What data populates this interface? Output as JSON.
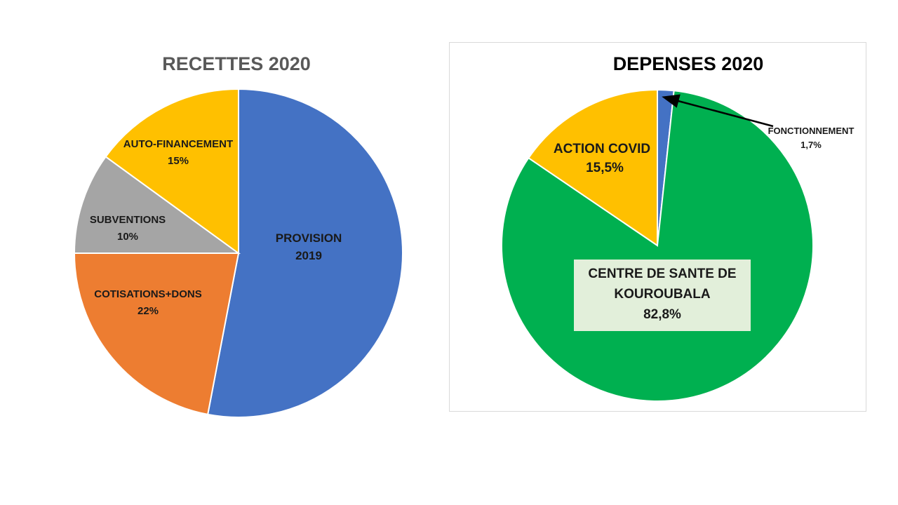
{
  "chart_data": [
    {
      "type": "pie",
      "title": "RECETTES 2020",
      "slices": [
        {
          "label": "PROVISION 2019",
          "line1": "PROVISION",
          "line2": "2019",
          "value": 53,
          "color": "#4472C4"
        },
        {
          "label": "COTISATIONS+DONS",
          "line1": "COTISATIONS+DONS",
          "line2": "22%",
          "value": 22,
          "color": "#ED7D31"
        },
        {
          "label": "SUBVENTIONS",
          "line1": "SUBVENTIONS",
          "line2": "10%",
          "value": 10,
          "color": "#A5A5A5"
        },
        {
          "label": "AUTO-FINANCEMENT",
          "line1": "AUTO-FINANCEMENT",
          "line2": "15%",
          "value": 15,
          "color": "#FFC000"
        }
      ]
    },
    {
      "type": "pie",
      "title": "DEPENSES 2020",
      "slices": [
        {
          "label": "FONCTIONNEMENT",
          "line1": "FONCTIONNEMENT",
          "line2": "1,7%",
          "value": 1.7,
          "color": "#4472C4"
        },
        {
          "label": "CENTRE DE SANTE DE KOUROUBALA",
          "line1": "CENTRE DE SANTE DE",
          "line2": "KOUROUBALA",
          "line3": "82,8%",
          "value": 82.8,
          "color": "#00B050"
        },
        {
          "label": "ACTION COVID",
          "line1": "ACTION COVID",
          "line2": "15,5%",
          "value": 15.5,
          "color": "#FFC000"
        }
      ]
    }
  ]
}
